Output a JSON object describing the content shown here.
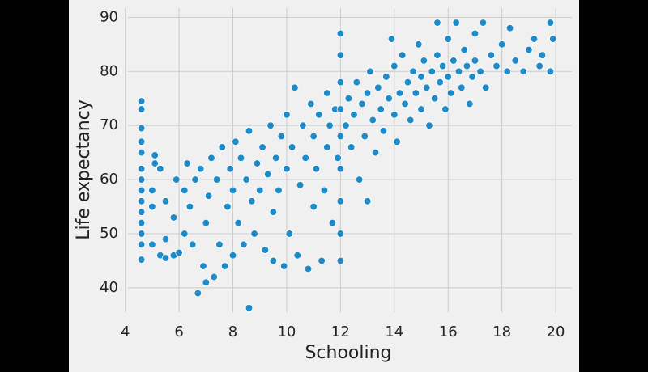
{
  "chart_data": {
    "type": "scatter",
    "xlabel": "Schooling",
    "ylabel": "Life expectancy",
    "color": "#1f8ac8",
    "grid": true,
    "xlim": [
      4.1,
      20.6
    ],
    "ylim": [
      35.5,
      91.7
    ],
    "xticks": [
      4,
      6,
      8,
      10,
      12,
      14,
      16,
      18,
      20
    ],
    "yticks": [
      40,
      50,
      60,
      70,
      80,
      90
    ],
    "x": [
      4.6,
      4.6,
      4.6,
      4.6,
      4.6,
      4.6,
      4.6,
      4.6,
      4.6,
      4.6,
      4.6,
      4.6,
      4.6,
      4.6,
      5.0,
      5.0,
      5.0,
      5.1,
      5.1,
      5.3,
      5.3,
      5.5,
      5.5,
      5.5,
      5.8,
      5.8,
      5.9,
      6.0,
      6.2,
      6.2,
      6.3,
      6.4,
      6.5,
      6.6,
      6.7,
      6.8,
      6.9,
      7.0,
      7.0,
      7.1,
      7.2,
      7.3,
      7.4,
      7.5,
      7.6,
      7.7,
      7.8,
      7.9,
      8.0,
      8.0,
      8.1,
      8.2,
      8.3,
      8.4,
      8.5,
      8.6,
      8.6,
      8.7,
      8.8,
      8.9,
      9.0,
      9.1,
      9.2,
      9.3,
      9.4,
      9.5,
      9.5,
      9.6,
      9.7,
      9.8,
      9.9,
      10.0,
      10.0,
      10.1,
      10.2,
      10.3,
      10.4,
      10.5,
      10.6,
      10.7,
      10.8,
      10.9,
      11.0,
      11.0,
      11.1,
      11.2,
      11.3,
      11.4,
      11.5,
      11.5,
      11.6,
      11.7,
      11.8,
      11.9,
      12.0,
      12.0,
      12.0,
      12.0,
      12.0,
      12.0,
      12.0,
      12.0,
      12.0,
      12.2,
      12.3,
      12.4,
      12.5,
      12.6,
      12.7,
      12.8,
      12.9,
      13.0,
      13.0,
      13.1,
      13.2,
      13.3,
      13.4,
      13.5,
      13.6,
      13.7,
      13.8,
      13.9,
      14.0,
      14.0,
      14.1,
      14.2,
      14.3,
      14.4,
      14.5,
      14.6,
      14.7,
      14.8,
      14.9,
      15.0,
      15.0,
      15.1,
      15.2,
      15.3,
      15.4,
      15.5,
      15.6,
      15.6,
      15.7,
      15.8,
      15.9,
      16.0,
      16.0,
      16.1,
      16.2,
      16.3,
      16.4,
      16.5,
      16.6,
      16.7,
      16.8,
      16.9,
      17.0,
      17.0,
      17.2,
      17.3,
      17.4,
      17.6,
      17.8,
      18.0,
      18.2,
      18.3,
      18.5,
      18.8,
      19.0,
      19.2,
      19.4,
      19.5,
      19.8,
      19.8,
      19.9
    ],
    "y": [
      45.2,
      48,
      50,
      52,
      54,
      56,
      58,
      60,
      62,
      65,
      67,
      69.5,
      73,
      74.5,
      48,
      55,
      58,
      63,
      64.5,
      46,
      62,
      45.5,
      49,
      56,
      46,
      53,
      60,
      46.5,
      50,
      58,
      63,
      55,
      48,
      60,
      39,
      62,
      44,
      41,
      52,
      57,
      64,
      42,
      60,
      48,
      66,
      44,
      55,
      62,
      46,
      58,
      67,
      52,
      64,
      48,
      60,
      36.3,
      69,
      56,
      50,
      63,
      58,
      66,
      47,
      61,
      70,
      45,
      54,
      64,
      58,
      68,
      44,
      62,
      72,
      50,
      66,
      77,
      46,
      59,
      70,
      64,
      43.5,
      74,
      55,
      68,
      62,
      72,
      45,
      58,
      76,
      66,
      70,
      52,
      73,
      64,
      45,
      50,
      56,
      62,
      68,
      73,
      78,
      83,
      87,
      70,
      75,
      66,
      72,
      78,
      60,
      74,
      68,
      76,
      56,
      80,
      71,
      65,
      77,
      73,
      69,
      79,
      75,
      86,
      72,
      81,
      67,
      76,
      83,
      74,
      78,
      71,
      80,
      76,
      85,
      73,
      79,
      82,
      77,
      70,
      80,
      75,
      83,
      89,
      78,
      81,
      73,
      79,
      86,
      76,
      82,
      89,
      80,
      77,
      84,
      81,
      74,
      79,
      82,
      87,
      80,
      89,
      77,
      83,
      81,
      85,
      80,
      88,
      82,
      80,
      84,
      86,
      81,
      83,
      80,
      89,
      86
    ]
  }
}
